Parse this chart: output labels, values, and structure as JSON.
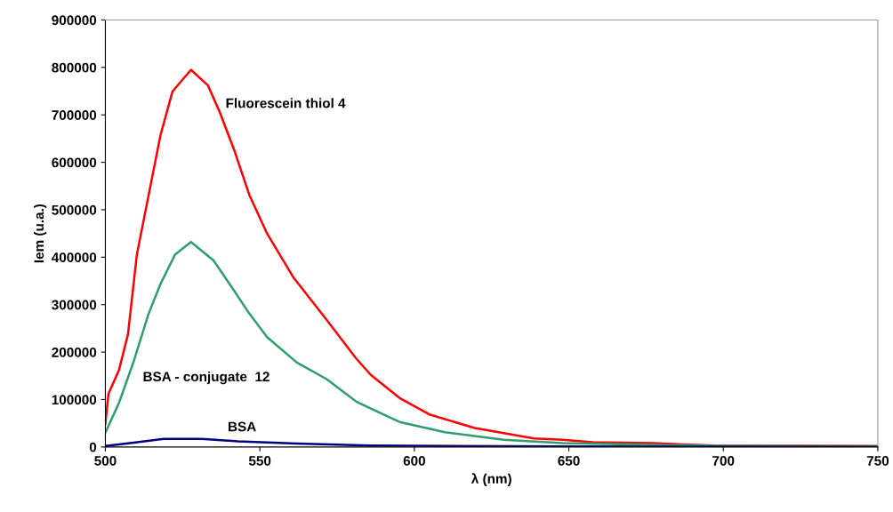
{
  "chart_data": {
    "type": "line",
    "xlabel": "λ (nm)",
    "ylabel": "Iem (u.a.)",
    "xlim": [
      500,
      750
    ],
    "xticks": [
      500,
      550,
      600,
      650,
      700,
      750
    ],
    "ylim": [
      0,
      900000
    ],
    "yticks": [
      0,
      100000,
      200000,
      300000,
      400000,
      500000,
      600000,
      700000,
      800000,
      900000
    ],
    "grid": false,
    "legend": false,
    "marker": "none",
    "line_style": "solid",
    "series": [
      {
        "name": "Fluorescein thiol 4",
        "color": "#ff0000",
        "x": [
          500,
          501,
          504.4,
          507.3,
          510.2,
          514,
          517.8,
          521.7,
          527.7,
          533.2,
          537,
          541.8,
          546.6,
          552.4,
          561,
          571.6,
          581.1,
          585.9,
          595.5,
          605.1,
          619.5,
          638.7,
          648,
          657.8,
          677,
          697,
          750
        ],
        "values": [
          49000,
          112000,
          162000,
          237000,
          406000,
          531000,
          656000,
          749000,
          795000,
          762000,
          706000,
          624000,
          531000,
          449000,
          356000,
          268000,
          187000,
          152000,
          102000,
          68000,
          40000,
          18000,
          15000,
          10000,
          8000,
          3000,
          2000
        ]
      },
      {
        "name": "BSA - conjugate  12",
        "color": "#2e9e6a",
        "x": [
          500,
          504.4,
          509.2,
          514,
          517.8,
          522.6,
          527.7,
          535,
          540.9,
          546.6,
          552.4,
          562,
          571.6,
          581.1,
          585.9,
          595.5,
          609.9,
          629,
          648,
          700,
          750
        ],
        "values": [
          30000,
          93000,
          181000,
          281000,
          343000,
          406000,
          432000,
          393000,
          337000,
          281000,
          231000,
          178000,
          143000,
          96000,
          81000,
          52000,
          31000,
          15000,
          8000,
          2000,
          1000
        ]
      },
      {
        "name": "BSA",
        "color": "#000080",
        "x": [
          500,
          509.2,
          518.8,
          531.2,
          542.8,
          562,
          585.9,
          650,
          750
        ],
        "values": [
          2000,
          9000,
          17000,
          17000,
          12000,
          7000,
          3000,
          1000,
          0
        ]
      }
    ]
  }
}
